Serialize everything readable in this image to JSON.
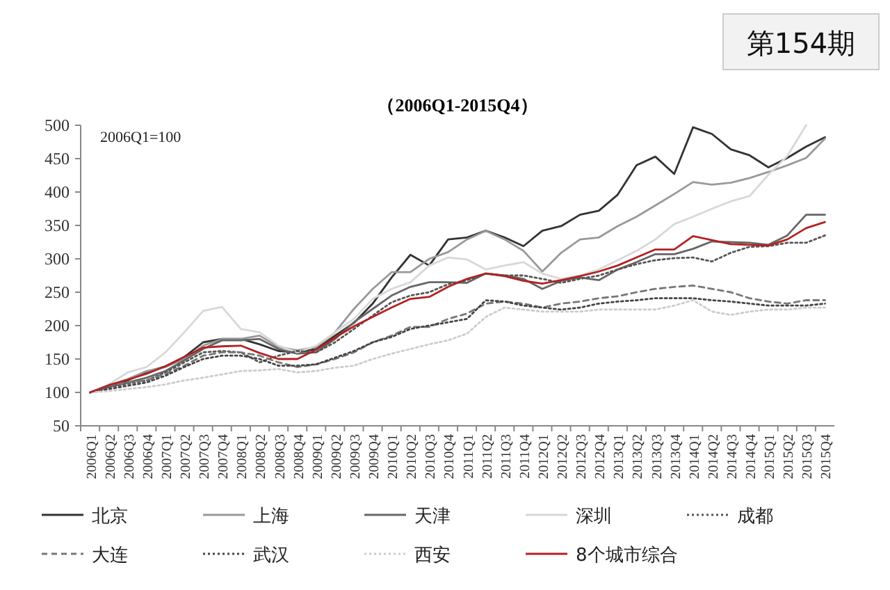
{
  "chart_data": {
    "type": "line",
    "title": "（2006Q1-2015Q4）",
    "annotations": [
      "2006Q1=100",
      "第154期"
    ],
    "categories": [
      "2006Q1",
      "2006Q2",
      "2006Q3",
      "2006Q4",
      "2007Q1",
      "2007Q2",
      "2007Q3",
      "2007Q4",
      "2008Q1",
      "2008Q2",
      "2008Q3",
      "2008Q4",
      "2009Q1",
      "2009Q2",
      "2009Q3",
      "2009Q4",
      "2010Q1",
      "2010Q2",
      "2010Q3",
      "2010Q4",
      "2011Q1",
      "2011Q2",
      "2011Q3",
      "2011Q4",
      "2012Q1",
      "2012Q2",
      "2012Q3",
      "2012Q4",
      "2013Q1",
      "2013Q2",
      "2013Q3",
      "2013Q4",
      "2014Q1",
      "2014Q2",
      "2014Q3",
      "2014Q4",
      "2015Q1",
      "2015Q2",
      "2015Q3",
      "2015Q4"
    ],
    "ylim": [
      50,
      500
    ],
    "yticks": [
      50,
      100,
      150,
      200,
      250,
      300,
      350,
      400,
      450,
      500
    ],
    "grid": false,
    "legend": "bottom",
    "series": [
      {
        "name": "北京",
        "color": "#333333",
        "line_style": "solid",
        "values": [
          100,
          109,
          118,
          131,
          139,
          153,
          175,
          180,
          180,
          172,
          162,
          160,
          165,
          185,
          204,
          233,
          272,
          306,
          290,
          329,
          332,
          342,
          332,
          319,
          342,
          349,
          366,
          372,
          396,
          440,
          453,
          427,
          497,
          487,
          464,
          455,
          437,
          451,
          468,
          482
        ]
      },
      {
        "name": "上海",
        "color": "#999999",
        "line_style": "solid",
        "values": [
          100,
          110,
          120,
          132,
          138,
          150,
          170,
          180,
          180,
          185,
          168,
          163,
          168,
          190,
          225,
          255,
          280,
          280,
          300,
          310,
          329,
          342,
          329,
          312,
          281,
          309,
          329,
          332,
          349,
          363,
          380,
          397,
          415,
          411,
          414,
          421,
          430,
          440,
          451,
          480
        ]
      },
      {
        "name": "天津",
        "color": "#666666",
        "line_style": "solid",
        "values": [
          100,
          108,
          115,
          122,
          132,
          148,
          165,
          178,
          178,
          180,
          165,
          158,
          160,
          180,
          205,
          225,
          245,
          258,
          265,
          265,
          264,
          278,
          275,
          270,
          255,
          267,
          272,
          268,
          284,
          295,
          307,
          307,
          315,
          326,
          325,
          324,
          321,
          335,
          366,
          366
        ]
      },
      {
        "name": "深圳",
        "color": "#d8d8d8",
        "line_style": "solid",
        "values": [
          100,
          112,
          130,
          138,
          160,
          190,
          222,
          228,
          195,
          190,
          170,
          160,
          170,
          190,
          210,
          240,
          255,
          265,
          290,
          302,
          299,
          284,
          290,
          295,
          278,
          270,
          275,
          284,
          298,
          312,
          329,
          352,
          363,
          375,
          386,
          394,
          426,
          454,
          500,
          null
        ]
      },
      {
        "name": "成都",
        "color": "#555555",
        "line_style": "dotted",
        "values": [
          100,
          108,
          113,
          118,
          130,
          145,
          160,
          162,
          160,
          145,
          155,
          162,
          160,
          175,
          195,
          215,
          235,
          245,
          250,
          262,
          268,
          278,
          275,
          275,
          270,
          264,
          270,
          275,
          284,
          292,
          298,
          301,
          302,
          296,
          309,
          318,
          319,
          324,
          324,
          335
        ]
      },
      {
        "name": "大连",
        "color": "#777777",
        "line_style": "dashed",
        "values": [
          100,
          110,
          115,
          118,
          128,
          140,
          155,
          160,
          160,
          155,
          145,
          138,
          142,
          150,
          160,
          175,
          185,
          198,
          198,
          210,
          218,
          233,
          236,
          233,
          227,
          233,
          236,
          241,
          244,
          250,
          255,
          258,
          260,
          255,
          250,
          241,
          236,
          233,
          238,
          238
        ]
      },
      {
        "name": "武汉",
        "color": "#444444",
        "line_style": "dotted",
        "values": [
          100,
          105,
          110,
          115,
          125,
          138,
          150,
          155,
          155,
          150,
          140,
          140,
          142,
          152,
          162,
          175,
          183,
          195,
          200,
          205,
          210,
          238,
          236,
          230,
          227,
          224,
          227,
          233,
          236,
          238,
          241,
          241,
          241,
          238,
          236,
          233,
          230,
          230,
          230,
          233
        ]
      },
      {
        "name": "西安",
        "color": "#cccccc",
        "line_style": "dotted",
        "values": [
          100,
          102,
          105,
          108,
          112,
          118,
          122,
          127,
          132,
          133,
          135,
          130,
          132,
          137,
          140,
          150,
          158,
          165,
          172,
          178,
          188,
          213,
          227,
          224,
          221,
          221,
          221,
          224,
          224,
          224,
          224,
          230,
          238,
          221,
          216,
          221,
          224,
          224,
          227,
          227
        ]
      },
      {
        "name": "8个城市综合",
        "color": "#b22222",
        "line_style": "solid",
        "values": [
          100,
          111,
          119,
          128,
          139,
          153,
          167,
          169,
          170,
          159,
          150,
          150,
          164,
          182,
          199,
          213,
          227,
          240,
          243,
          258,
          270,
          278,
          274,
          267,
          263,
          268,
          274,
          281,
          290,
          302,
          314,
          314,
          334,
          328,
          322,
          321,
          320,
          329,
          346,
          355
        ]
      }
    ]
  }
}
